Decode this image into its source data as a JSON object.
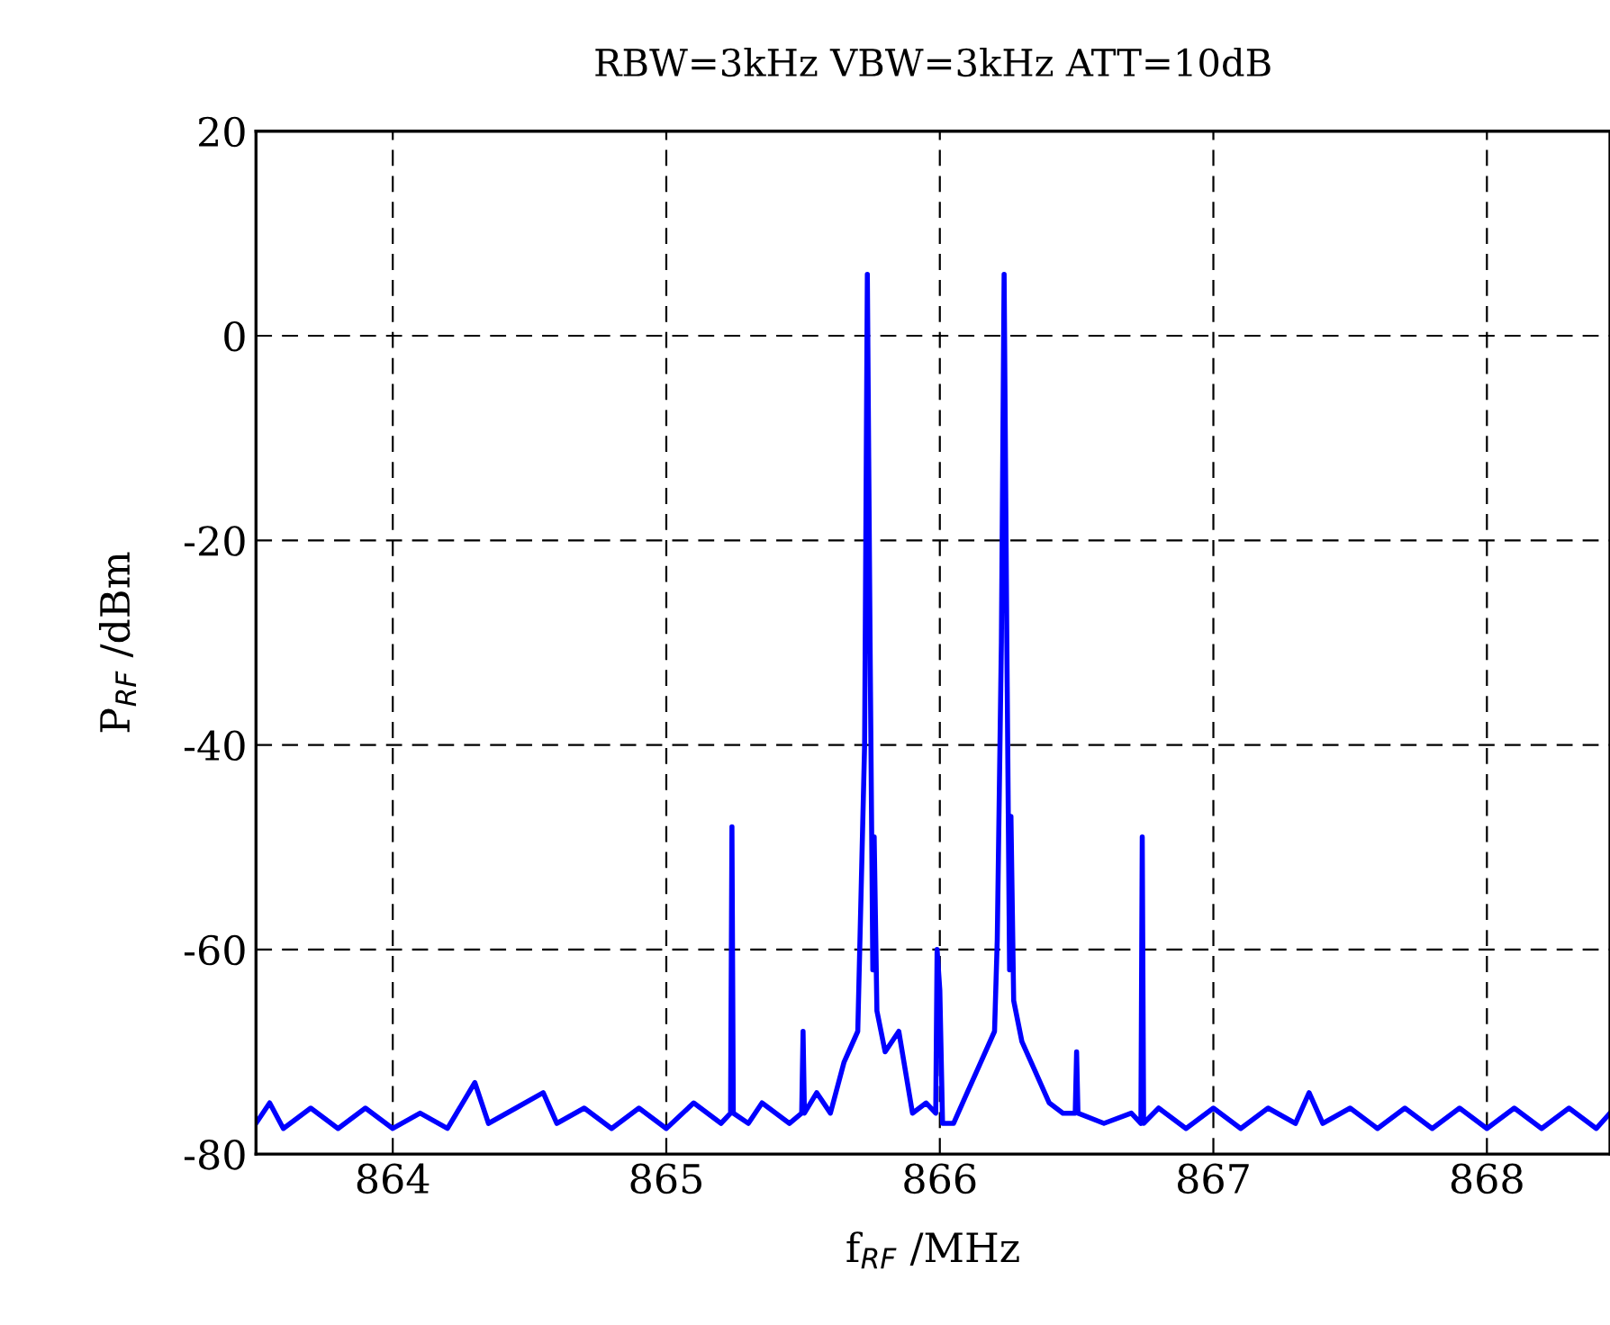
{
  "chart_data": {
    "type": "line",
    "title": "RBW=3kHz VBW=3kHz ATT=10dB",
    "xlabel": "f$_{RF}$ /MHz",
    "ylabel": "P$_{RF}$ /dBm",
    "series": [
      {
        "color": "#0000ff",
        "x": [
          863.5,
          863.55,
          863.6,
          863.7,
          863.8,
          863.9,
          864.0,
          864.1,
          864.2,
          864.3,
          864.35,
          864.45,
          864.55,
          864.6,
          864.7,
          864.8,
          864.9,
          865.0,
          865.1,
          865.2,
          865.235,
          865.24,
          865.245,
          865.3,
          865.35,
          865.45,
          865.495,
          865.5,
          865.505,
          865.55,
          865.6,
          865.65,
          865.7,
          865.725,
          865.735,
          865.745,
          865.755,
          865.76,
          865.77,
          865.8,
          865.85,
          865.9,
          865.95,
          865.985,
          865.99,
          866.0,
          866.01,
          866.05,
          866.1,
          866.15,
          866.2,
          866.21,
          866.225,
          866.235,
          866.245,
          866.255,
          866.26,
          866.27,
          866.3,
          866.35,
          866.4,
          866.45,
          866.495,
          866.5,
          866.505,
          866.6,
          866.7,
          866.735,
          866.74,
          866.745,
          866.8,
          866.9,
          867.0,
          867.1,
          867.2,
          867.3,
          867.35,
          867.4,
          867.5,
          867.6,
          867.7,
          867.8,
          867.9,
          868.0,
          868.1,
          868.2,
          868.3,
          868.4,
          868.45
        ],
        "values": [
          -77,
          -75,
          -77.5,
          -75.5,
          -77.5,
          -75.5,
          -77.5,
          -76,
          -77.5,
          -73,
          -77,
          -75.5,
          -74,
          -77,
          -75.5,
          -77.5,
          -75.5,
          -77.5,
          -75,
          -77,
          -76,
          -48,
          -76,
          -77,
          -75,
          -77,
          -76,
          -68,
          -76,
          -74,
          -76,
          -71,
          -68,
          -40,
          6,
          -30,
          -62,
          -49,
          -66,
          -70,
          -68,
          -76,
          -75,
          -76,
          -60,
          -64,
          -77,
          -77,
          -74,
          -71,
          -68,
          -59,
          -30,
          6,
          -30,
          -62,
          -47,
          -65,
          -69,
          -72,
          -75,
          -76,
          -76,
          -70,
          -76,
          -77,
          -76,
          -77,
          -49,
          -77,
          -75.5,
          -77.5,
          -75.5,
          -77.5,
          -75.5,
          -77,
          -74,
          -77,
          -75.5,
          -77.5,
          -75.5,
          -77.5,
          -75.5,
          -77.5,
          -75.5,
          -77.5,
          -75.5,
          -77.5,
          -76
        ]
      }
    ],
    "xlim": [
      863.5,
      868.45
    ],
    "xticks": [
      864,
      865,
      866,
      867,
      868
    ],
    "ylim": [
      -80,
      20
    ],
    "yticks": [
      -80,
      -60,
      -40,
      -20,
      0,
      20
    ],
    "grid": true,
    "line_style": "solid",
    "marker": "none",
    "legend": false
  }
}
